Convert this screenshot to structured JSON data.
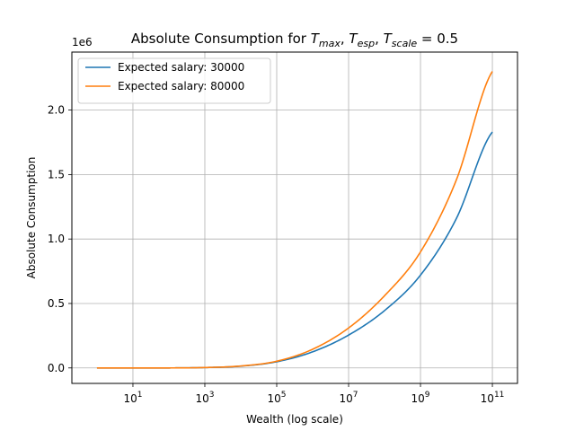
{
  "chart_data": {
    "type": "line",
    "title_prefix": "Absolute Consumption for ",
    "title_parts": [
      {
        "main": "T",
        "sub": "max",
        "after": ", "
      },
      {
        "main": "T",
        "sub": "esp",
        "after": ", "
      },
      {
        "main": "T",
        "sub": "scale",
        "after": " = 0.5"
      }
    ],
    "xlabel": "Wealth (log scale)",
    "ylabel": "Absolute Consumption",
    "xscale": "log",
    "xlim": [
      0.2,
      500000000000
    ],
    "ylim": [
      -120000,
      2450000
    ],
    "y_offset_label": "1e6",
    "x_ticks": [
      {
        "value": 10,
        "base": "10",
        "exp": "1"
      },
      {
        "value": 1000,
        "base": "10",
        "exp": "3"
      },
      {
        "value": 100000,
        "base": "10",
        "exp": "5"
      },
      {
        "value": 10000000,
        "base": "10",
        "exp": "7"
      },
      {
        "value": 1000000000,
        "base": "10",
        "exp": "9"
      },
      {
        "value": 100000000000,
        "base": "10",
        "exp": "11"
      }
    ],
    "y_ticks": [
      {
        "value": 0,
        "label": "0.0"
      },
      {
        "value": 500000,
        "label": "0.5"
      },
      {
        "value": 1000000,
        "label": "1.0"
      },
      {
        "value": 1500000,
        "label": "1.5"
      },
      {
        "value": 2000000,
        "label": "2.0"
      }
    ],
    "grid": true,
    "legend_position": "upper-left",
    "x": [
      1,
      10,
      100,
      1000,
      10000,
      100000,
      1000000,
      10000000,
      100000000,
      1000000000,
      10000000000,
      100000000000
    ],
    "series": [
      {
        "name": "Expected salary: 30000",
        "color": "#1f77b4",
        "values": [
          0,
          0,
          0,
          3000,
          14000,
          48000,
          125000,
          255000,
          445000,
          720000,
          1160000,
          1830000
        ]
      },
      {
        "name": "Expected salary: 80000",
        "color": "#ff7f0e",
        "values": [
          0,
          0,
          0,
          3000,
          15000,
          52000,
          145000,
          310000,
          560000,
          900000,
          1460000,
          2300000
        ]
      }
    ]
  }
}
